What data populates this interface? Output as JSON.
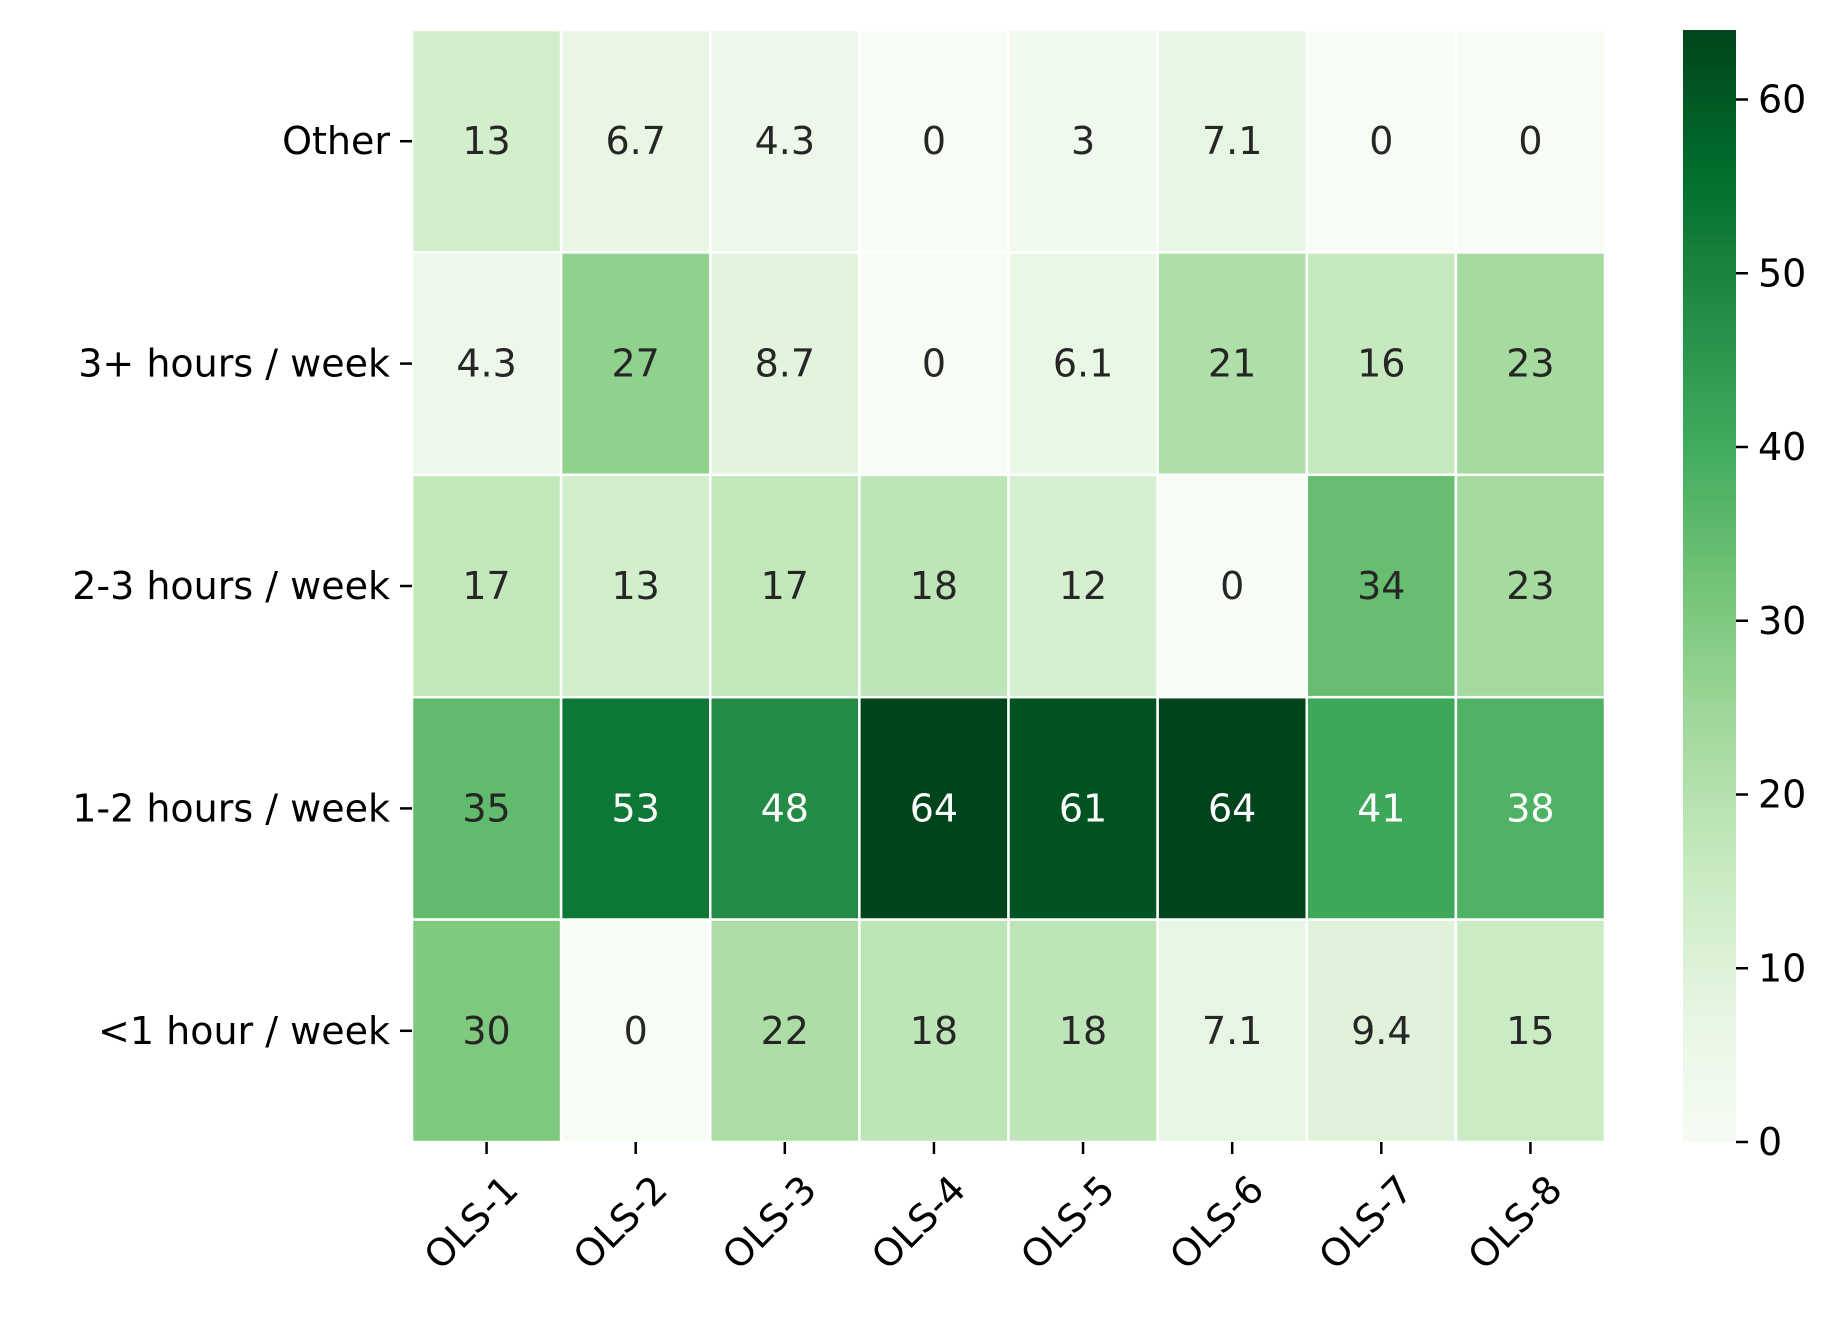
{
  "chart_data": {
    "type": "heatmap",
    "x_categories": [
      "OLS-1",
      "OLS-2",
      "OLS-3",
      "OLS-4",
      "OLS-5",
      "OLS-6",
      "OLS-7",
      "OLS-8"
    ],
    "y_categories": [
      "Other",
      "3+ hours / week",
      "2-3 hours / week",
      "1-2 hours / week",
      "<1 hour / week"
    ],
    "values": [
      [
        13,
        6.7,
        4.3,
        0,
        3,
        7.1,
        0,
        0
      ],
      [
        4.3,
        27,
        8.7,
        0,
        6.1,
        21,
        16,
        23
      ],
      [
        17,
        13,
        17,
        18,
        12,
        0,
        34,
        23
      ],
      [
        35,
        53,
        48,
        64,
        61,
        64,
        41,
        38
      ],
      [
        30,
        0,
        22,
        18,
        18,
        7.1,
        9.4,
        15
      ]
    ],
    "cell_labels": [
      [
        "13",
        "6.7",
        "4.3",
        "0",
        "3",
        "7.1",
        "0",
        "0"
      ],
      [
        "4.3",
        "27",
        "8.7",
        "0",
        "6.1",
        "21",
        "16",
        "23"
      ],
      [
        "17",
        "13",
        "17",
        "18",
        "12",
        "0",
        "34",
        "23"
      ],
      [
        "35",
        "53",
        "48",
        "64",
        "61",
        "64",
        "41",
        "38"
      ],
      [
        "30",
        "0",
        "22",
        "18",
        "18",
        "7.1",
        "9.4",
        "15"
      ]
    ],
    "colorscale": "Greens",
    "colorscale_stops": [
      "#f7fcf5",
      "#e5f5e0",
      "#c7e9c0",
      "#a1d99b",
      "#74c476",
      "#41ab5d",
      "#238b45",
      "#006d2c",
      "#00441b"
    ],
    "color_range": [
      0,
      64
    ],
    "colorbar_ticks": [
      "0",
      "10",
      "20",
      "30",
      "40",
      "50",
      "60"
    ],
    "colorbar_tick_values": [
      0,
      10,
      20,
      30,
      40,
      50,
      60
    ],
    "grid": false,
    "title": "",
    "xlabel": "",
    "ylabel": ""
  }
}
